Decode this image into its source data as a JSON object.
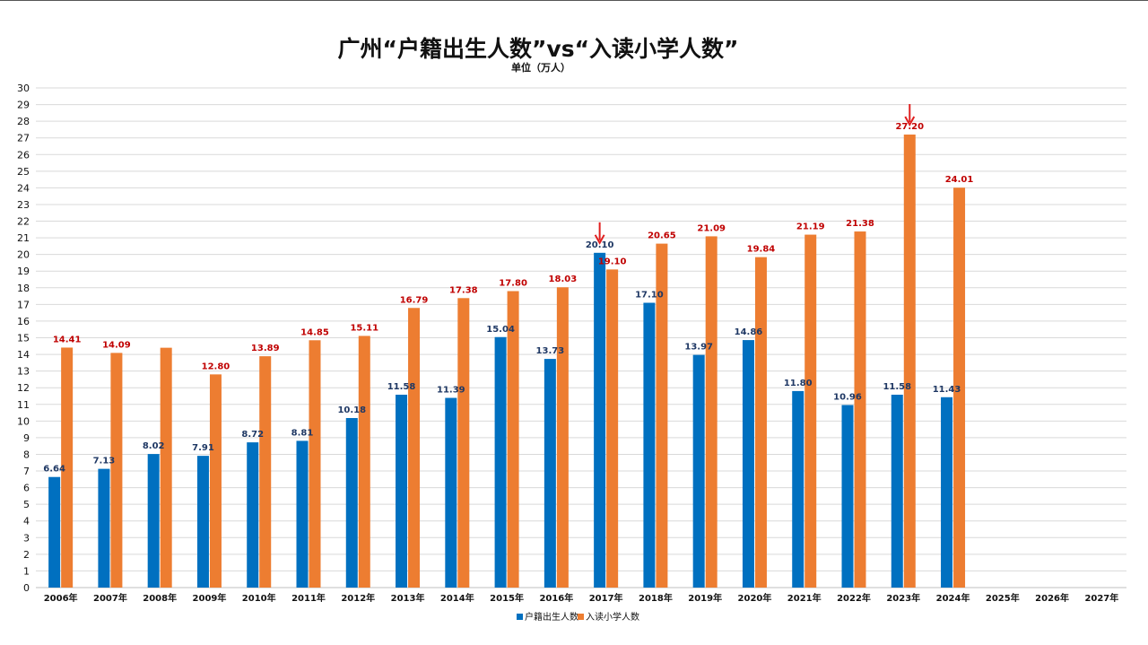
{
  "chart_data": {
    "type": "bar",
    "title": "广州“户籍出生人数”vs“入读小学人数”",
    "subtitle": "单位（万人）",
    "categories": [
      "2006年",
      "2007年",
      "2008年",
      "2009年",
      "2010年",
      "2011年",
      "2012年",
      "2013年",
      "2014年",
      "2015年",
      "2016年",
      "2017年",
      "2018年",
      "2019年",
      "2020年",
      "2021年",
      "2022年",
      "2023年",
      "2024年",
      "2025年",
      "2026年",
      "2027年"
    ],
    "series": [
      {
        "name": "户籍出生人数",
        "color": "#0070c0",
        "values": [
          6.64,
          7.13,
          8.02,
          7.91,
          8.72,
          8.81,
          10.18,
          11.58,
          11.39,
          15.04,
          13.73,
          20.1,
          17.1,
          13.97,
          14.86,
          11.8,
          10.96,
          11.58,
          11.43,
          null,
          null,
          null
        ],
        "labels": [
          "6.64",
          "7.13",
          "8.02",
          "7.91",
          "8.72",
          "8.81",
          "10.18",
          "11.58",
          "11.39",
          "15.04",
          "13.73",
          "20.10",
          "17.10",
          "13.97",
          "14.86",
          "11.80",
          "10.96",
          "11.58",
          "11.43",
          "",
          "",
          ""
        ]
      },
      {
        "name": "入读小学人数",
        "color": "#ed7d31",
        "values": [
          14.41,
          14.09,
          14.4,
          12.8,
          13.89,
          14.85,
          15.11,
          16.79,
          17.38,
          17.8,
          18.03,
          19.1,
          20.65,
          21.09,
          19.84,
          21.19,
          21.38,
          27.2,
          24.01,
          null,
          null,
          null
        ],
        "labels": [
          "14.41",
          "14.09",
          "",
          "12.80",
          "13.89",
          "14.85",
          "15.11",
          "16.79",
          "17.38",
          "17.80",
          "18.03",
          "19.10",
          "20.65",
          "21.09",
          "19.84",
          "21.19",
          "21.38",
          "27.20",
          "24.01",
          "",
          "",
          ""
        ]
      }
    ],
    "y_ticks": [
      "0",
      "1",
      "2",
      "3",
      "4",
      "5",
      "6",
      "7",
      "8",
      "9",
      "10",
      "11",
      "12",
      "13",
      "14",
      "15",
      "16",
      "17",
      "18",
      "19",
      "20",
      "21",
      "22",
      "23",
      "24",
      "25",
      "26",
      "27",
      "28",
      "29",
      "30"
    ],
    "ylim": [
      0,
      30
    ],
    "grid": true,
    "legend": "bottom-center",
    "annotations": [
      {
        "type": "arrow-down",
        "color": "#e02020",
        "category": "2017年",
        "series": "户籍出生人数"
      },
      {
        "type": "arrow-down",
        "color": "#e02020",
        "category": "2023年",
        "series": "入读小学人数"
      }
    ]
  }
}
